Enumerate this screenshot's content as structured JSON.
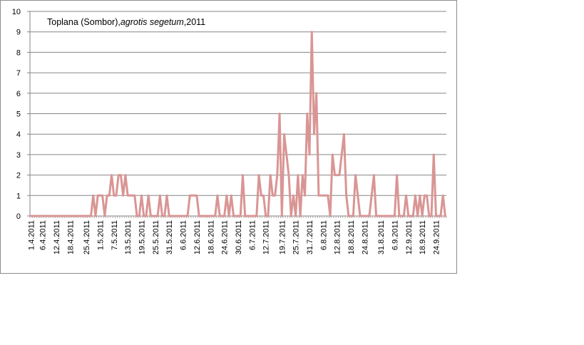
{
  "chart_data": {
    "type": "line",
    "title_parts": [
      "Toplana (Sombor),",
      "agrotis segetum",
      ",2011"
    ],
    "xlabel": "",
    "ylabel": "",
    "ylim": [
      0,
      10
    ],
    "y_ticks": [
      "0",
      "1",
      "2",
      "3",
      "4",
      "5",
      "6",
      "7",
      "8",
      "9",
      "10"
    ],
    "grid": true,
    "legend": "none",
    "line_color": "#d99594",
    "x_tick_labels": [
      "1.4.2011",
      "6.4.2011",
      "12.4.2011",
      "18.4.2011",
      "25.4.2011",
      "1.5.2011",
      "7.5.2011",
      "13.5.2011",
      "19.5.2011",
      "25.5.2011",
      "31.5.2011",
      "6.6.2011",
      "12.6.2011",
      "18.6.2011",
      "24.6.2011",
      "30.6.2011",
      "6.7.2011",
      "12.7.2011",
      "19.7.2011",
      "25.7.2011",
      "31.7.2011",
      "6.8.2011",
      "12.8.2011",
      "18.8.2011",
      "24.8.2011",
      "31.8.2011",
      "6.9.2011",
      "12.9.2011",
      "18.9.2011",
      "24.9.2011"
    ],
    "x_tick_index": [
      0,
      5,
      11,
      17,
      24,
      30,
      36,
      42,
      48,
      54,
      60,
      66,
      72,
      78,
      84,
      90,
      96,
      102,
      109,
      115,
      121,
      127,
      133,
      139,
      145,
      152,
      158,
      164,
      170,
      176
    ],
    "series": [
      {
        "values": [
          0,
          0,
          0,
          0,
          0,
          0,
          0,
          0,
          0,
          0,
          0,
          0,
          0,
          0,
          0,
          0,
          0,
          0,
          0,
          0,
          0,
          0,
          0,
          0,
          0,
          0,
          0,
          1,
          0,
          1,
          1,
          1,
          0,
          1,
          1,
          2,
          1,
          1,
          2,
          2,
          1,
          2,
          1,
          1,
          1,
          1,
          0,
          0,
          1,
          0,
          0,
          1,
          0,
          0,
          0,
          0,
          1,
          0,
          0,
          1,
          0,
          0,
          0,
          0,
          0,
          0,
          0,
          0,
          0,
          1,
          1,
          1,
          1,
          0,
          0,
          0,
          0,
          0,
          0,
          0,
          0,
          1,
          0,
          0,
          0,
          1,
          0,
          1,
          0,
          0,
          0,
          0,
          2,
          0,
          0,
          0,
          0,
          0,
          0,
          2,
          1,
          1,
          0,
          0,
          2,
          1,
          1,
          2,
          5,
          0,
          4,
          3,
          2,
          0,
          1,
          0,
          2,
          0,
          2,
          1,
          5,
          3,
          9,
          4,
          6,
          1,
          1,
          1,
          1,
          1,
          0,
          3,
          2,
          2,
          2,
          3,
          4,
          1,
          0,
          0,
          0,
          2,
          1,
          0,
          0,
          0,
          0,
          0,
          1,
          2,
          0,
          0,
          0,
          0,
          0,
          0,
          0,
          0,
          0,
          2,
          0,
          0,
          0,
          1,
          0,
          0,
          0,
          1,
          0,
          1,
          0,
          1,
          1,
          0,
          0,
          3,
          0,
          0,
          0,
          1,
          0
        ]
      }
    ]
  }
}
